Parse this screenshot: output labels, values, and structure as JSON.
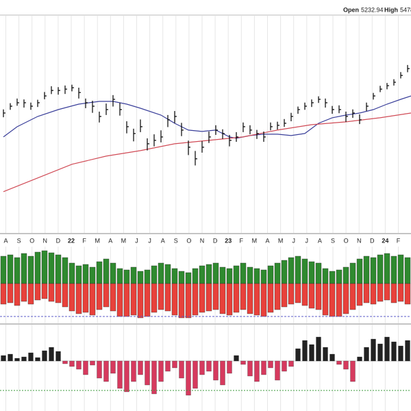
{
  "header": {
    "open_label": "Open",
    "open": 5232.94,
    "high_label": "High",
    "high": "5478."
  },
  "chart_data": [
    {
      "type": "ohlc",
      "xlim": [
        -0.5,
        59.5
      ],
      "ylim": [
        2420,
        6280
      ],
      "color": "#000000",
      "grid": true,
      "xticks": [
        {
          "value": 0.35,
          "label": "A"
        },
        {
          "value": 2.26,
          "label": "S"
        },
        {
          "value": 4.17,
          "label": "O"
        },
        {
          "value": 6.08,
          "label": "N"
        },
        {
          "value": 7.99,
          "label": "D"
        },
        {
          "value": 9.9,
          "label": "22"
        },
        {
          "value": 11.81,
          "label": "F"
        },
        {
          "value": 13.72,
          "label": "M"
        },
        {
          "value": 15.63,
          "label": "A"
        },
        {
          "value": 17.54,
          "label": "M"
        },
        {
          "value": 19.45,
          "label": "J"
        },
        {
          "value": 21.36,
          "label": "J"
        },
        {
          "value": 23.27,
          "label": "A"
        },
        {
          "value": 25.18,
          "label": "S"
        },
        {
          "value": 27.09,
          "label": "O"
        },
        {
          "value": 29.0,
          "label": "N"
        },
        {
          "value": 30.91,
          "label": "D"
        },
        {
          "value": 32.82,
          "label": "23"
        },
        {
          "value": 34.73,
          "label": "F"
        },
        {
          "value": 36.64,
          "label": "M"
        },
        {
          "value": 38.55,
          "label": "A"
        },
        {
          "value": 40.46,
          "label": "M"
        },
        {
          "value": 42.37,
          "label": "J"
        },
        {
          "value": 44.28,
          "label": "J"
        },
        {
          "value": 46.19,
          "label": "A"
        },
        {
          "value": 48.1,
          "label": "S"
        },
        {
          "value": 50.01,
          "label": "O"
        },
        {
          "value": 51.92,
          "label": "N"
        },
        {
          "value": 53.83,
          "label": "D"
        },
        {
          "value": 55.74,
          "label": "24"
        },
        {
          "value": 57.65,
          "label": "F"
        }
      ],
      "high": [
        4467,
        4570,
        4647,
        4632,
        4580,
        4627,
        4755,
        4851,
        4836,
        4863,
        4876,
        4827,
        4647,
        4610,
        4430,
        4564,
        4704,
        4574,
        4270,
        4147,
        4300,
        3987,
        4054,
        4120,
        4374,
        4440,
        4244,
        3950,
        3778,
        3940,
        4100,
        4204,
        4137,
        4044,
        4090,
        4250,
        4204,
        4127,
        4100,
        4250,
        4263,
        4307,
        4410,
        4514,
        4580,
        4632,
        4684,
        4647,
        4524,
        4534,
        4430,
        4467,
        4384,
        4580,
        4740,
        4858,
        4905,
        4967,
        5085,
        5203
      ],
      "low": [
        4337,
        4460,
        4527,
        4497,
        4460,
        4507,
        4635,
        4721,
        4711,
        4723,
        4766,
        4647,
        4487,
        4410,
        4250,
        4374,
        4514,
        4364,
        4070,
        3937,
        4090,
        3787,
        3854,
        3920,
        4174,
        4240,
        4024,
        3710,
        3538,
        3750,
        3910,
        4044,
        3977,
        3854,
        3930,
        4090,
        4054,
        3977,
        3930,
        4120,
        4133,
        4177,
        4270,
        4394,
        4460,
        4507,
        4574,
        4497,
        4394,
        4404,
        4260,
        4327,
        4224,
        4440,
        4630,
        4753,
        4800,
        4862,
        4980,
        5083
      ],
      "close": [
        4407,
        4520,
        4577,
        4577,
        4520,
        4577,
        4690,
        4781,
        4781,
        4803,
        4826,
        4747,
        4577,
        4520,
        4350,
        4464,
        4634,
        4464,
        4180,
        4067,
        4180,
        3897,
        3954,
        4010,
        4294,
        4350,
        4124,
        3840,
        3648,
        3840,
        4010,
        4124,
        4067,
        3954,
        4010,
        4180,
        4124,
        4067,
        4010,
        4180,
        4203,
        4237,
        4350,
        4464,
        4520,
        4577,
        4634,
        4577,
        4464,
        4464,
        4350,
        4407,
        4294,
        4520,
        4690,
        4803,
        4860,
        4917,
        5030,
        5143
      ],
      "lines": [
        {
          "color": "#3a3f9a",
          "x": [
            0,
            2,
            5,
            8,
            11,
            14,
            16,
            18,
            20,
            23,
            25,
            27,
            29,
            31,
            33,
            34,
            36,
            38,
            40,
            42,
            44,
            46,
            48,
            50,
            52,
            54,
            56,
            58,
            59.5
          ],
          "values": [
            4010,
            4180,
            4350,
            4464,
            4554,
            4600,
            4600,
            4554,
            4486,
            4373,
            4237,
            4124,
            4101,
            4124,
            4010,
            3988,
            4033,
            4056,
            4056,
            4033,
            4067,
            4237,
            4328,
            4373,
            4407,
            4464,
            4554,
            4634,
            4690
          ]
        },
        {
          "color": "#d04a55",
          "x": [
            0,
            5,
            10,
            15,
            20,
            25,
            30,
            35,
            40,
            45,
            50,
            55,
            59.5
          ],
          "values": [
            3104,
            3330,
            3557,
            3693,
            3784,
            3897,
            3954,
            4010,
            4124,
            4214,
            4260,
            4328,
            4407
          ]
        }
      ]
    },
    {
      "type": "breadth",
      "ylim": [
        -56,
        54
      ],
      "series": [
        {
          "color": "#2f8a2f",
          "values": [
            40,
            42,
            38,
            44,
            40,
            46,
            48,
            45,
            42,
            38,
            30,
            26,
            28,
            24,
            32,
            36,
            30,
            22,
            20,
            24,
            18,
            20,
            26,
            30,
            28,
            22,
            18,
            16,
            22,
            26,
            28,
            30,
            24,
            22,
            26,
            30,
            24,
            22,
            20,
            26,
            30,
            34,
            38,
            40,
            36,
            32,
            30,
            22,
            18,
            20,
            24,
            30,
            36,
            40,
            38,
            42,
            44,
            40,
            42,
            38
          ]
        },
        {
          "color": "#e8413b",
          "values": [
            -30,
            -28,
            -32,
            -26,
            -30,
            -24,
            -22,
            -26,
            -28,
            -34,
            -40,
            -44,
            -42,
            -46,
            -38,
            -34,
            -40,
            -48,
            -48,
            -46,
            -50,
            -48,
            -42,
            -38,
            -40,
            -46,
            -50,
            -50,
            -46,
            -42,
            -40,
            -38,
            -44,
            -46,
            -42,
            -38,
            -44,
            -46,
            -48,
            -42,
            -38,
            -34,
            -30,
            -28,
            -32,
            -36,
            -38,
            -46,
            -48,
            -48,
            -44,
            -38,
            -32,
            -28,
            -30,
            -26,
            -24,
            -28,
            -26,
            -30
          ]
        }
      ],
      "reference_line": {
        "value": -48,
        "color": "#5b5bc8"
      }
    },
    {
      "type": "histogram",
      "ylim": [
        -65,
        49
      ],
      "positive_color": "#222222",
      "negative_color": "#d63a5e",
      "values": [
        8,
        10,
        4,
        6,
        12,
        5,
        15,
        20,
        14,
        -4,
        -8,
        -12,
        -20,
        -6,
        -25,
        -30,
        -18,
        -40,
        -45,
        -30,
        -20,
        -35,
        -48,
        -30,
        -15,
        -10,
        -25,
        -50,
        -40,
        -20,
        -15,
        -28,
        -35,
        -18,
        8,
        -5,
        -22,
        -30,
        -20,
        -10,
        -28,
        -15,
        -8,
        18,
        30,
        24,
        35,
        20,
        10,
        -5,
        -12,
        -30,
        6,
        20,
        32,
        25,
        35,
        28,
        22,
        30
      ],
      "reference_line": {
        "value": -43,
        "color": "#3a9a3a"
      }
    }
  ]
}
